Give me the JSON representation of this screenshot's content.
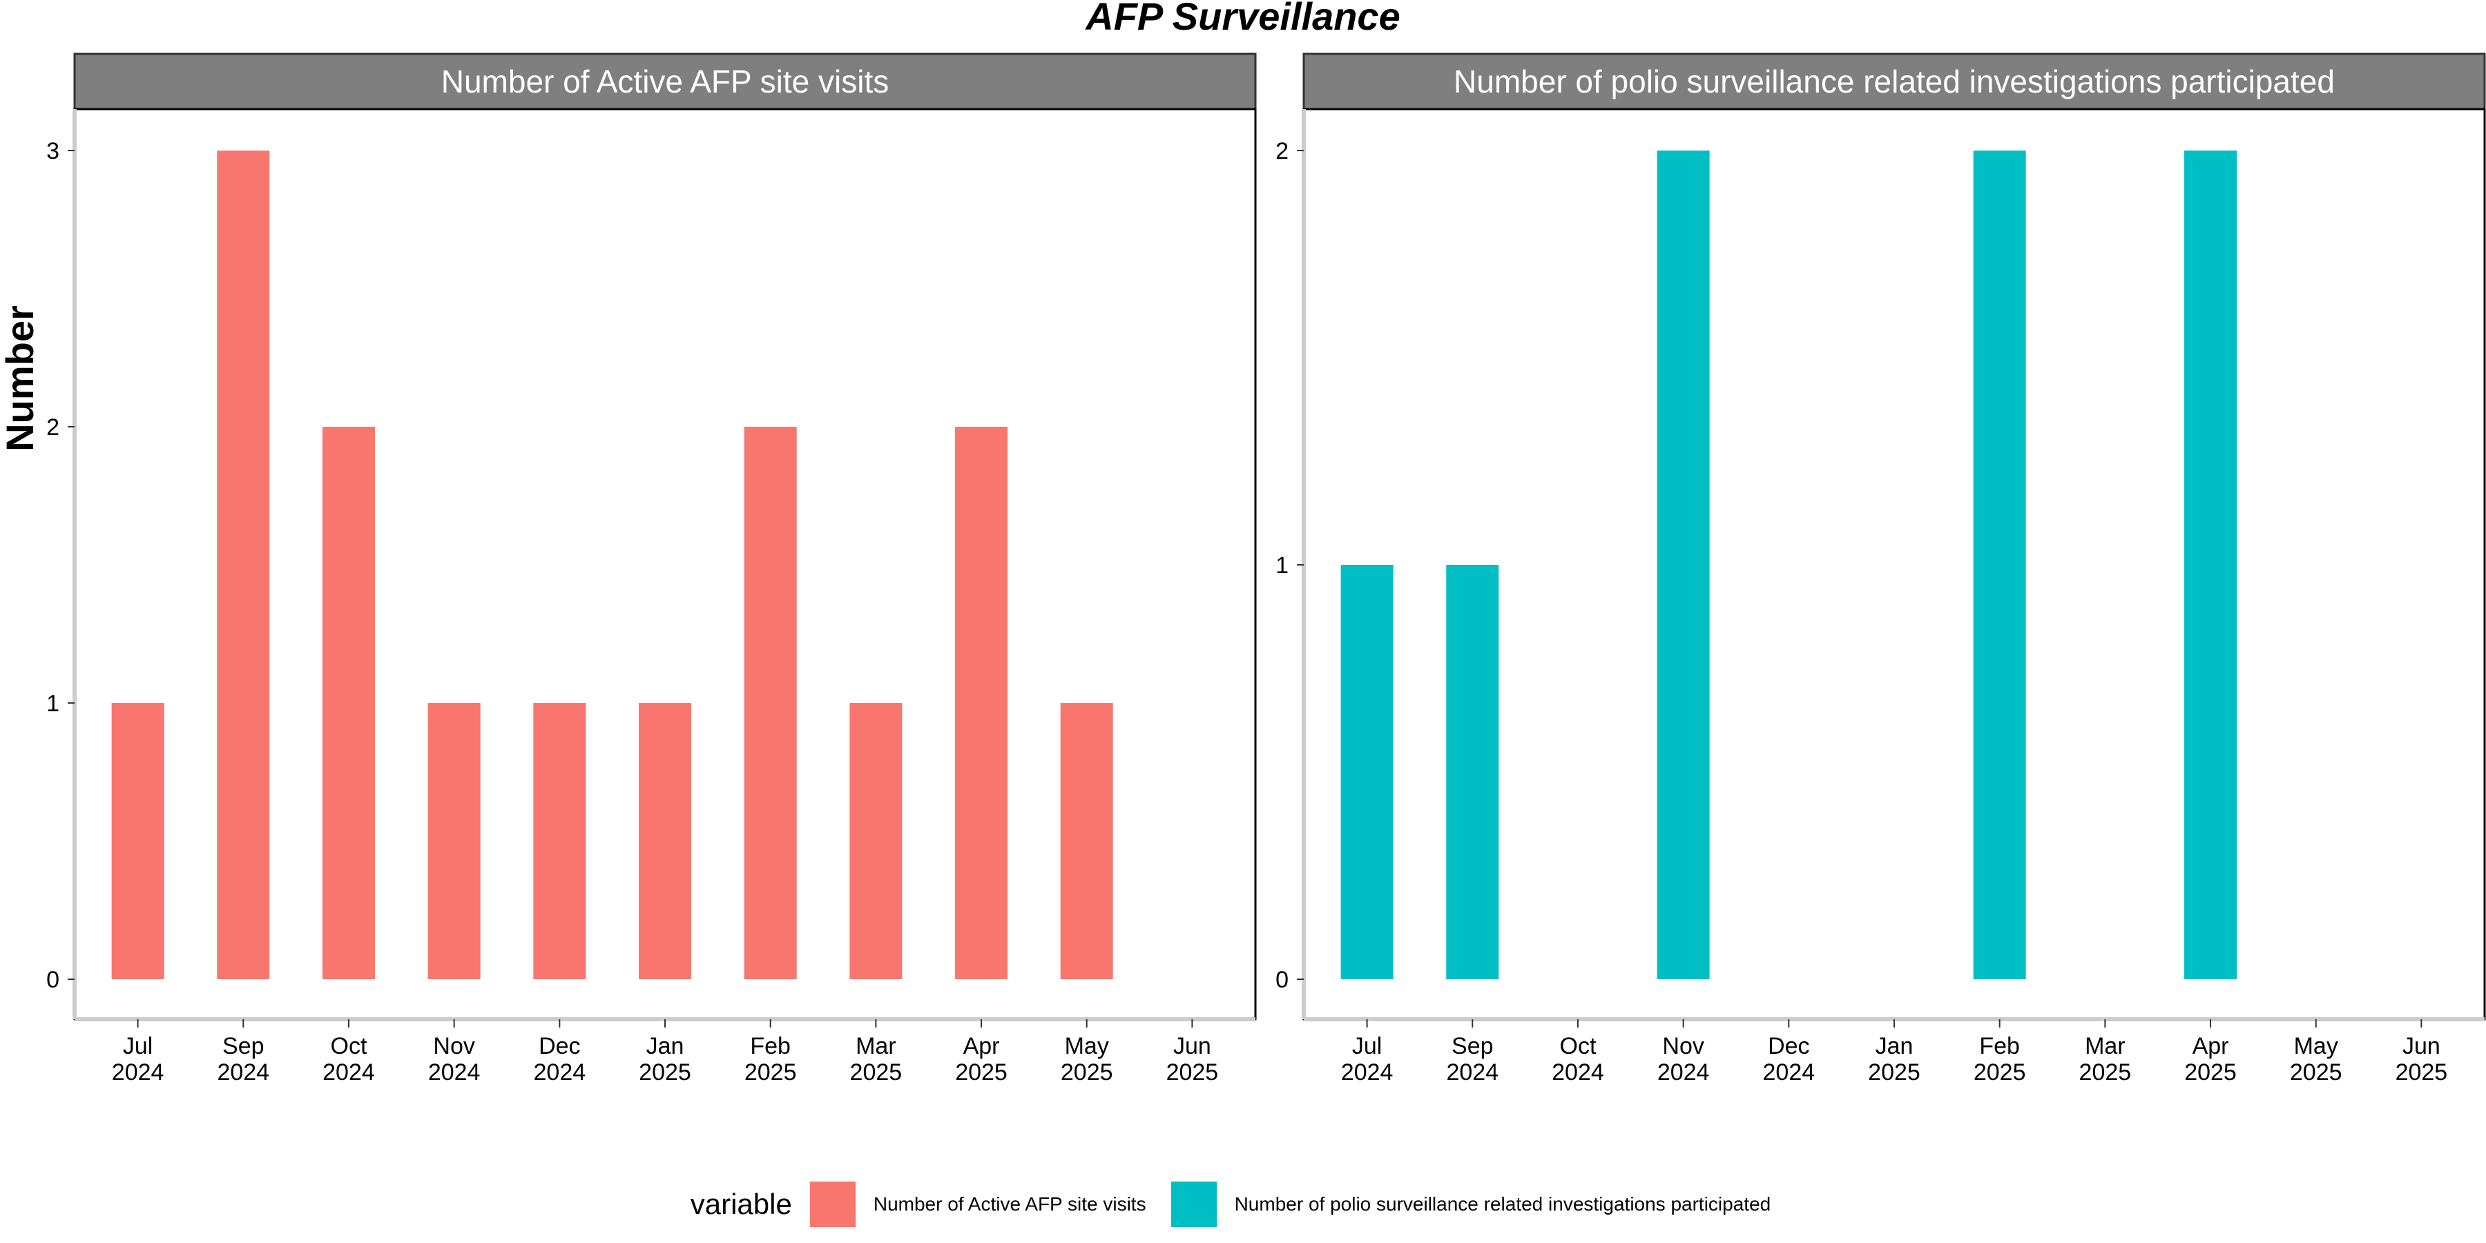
{
  "title": "AFP Surveillance",
  "ylabel": "Number",
  "legend": {
    "title": "variable",
    "position": "bottom",
    "items": [
      {
        "label": "Number of Active AFP site visits",
        "color": "#F8766D"
      },
      {
        "label": "Number of polio surveillance related investigations participated",
        "color": "#00BFC4"
      }
    ]
  },
  "chart_data": [
    {
      "type": "bar",
      "title": "Number of Active AFP site visits",
      "color": "#F8766D",
      "categories": [
        "Jul\n2024",
        "Sep\n2024",
        "Oct\n2024",
        "Nov\n2024",
        "Dec\n2024",
        "Jan\n2025",
        "Feb\n2025",
        "Mar\n2025",
        "Apr\n2025",
        "May\n2025",
        "Jun\n2025"
      ],
      "values": [
        1,
        3,
        2,
        1,
        1,
        1,
        2,
        1,
        2,
        1,
        null
      ],
      "yticks": [
        0,
        1,
        2,
        3
      ],
      "ylim": [
        0,
        3
      ],
      "grid": false
    },
    {
      "type": "bar",
      "title": "Number of polio surveillance related investigations participated",
      "color": "#00BFC4",
      "categories": [
        "Jul\n2024",
        "Sep\n2024",
        "Oct\n2024",
        "Nov\n2024",
        "Dec\n2024",
        "Jan\n2025",
        "Feb\n2025",
        "Mar\n2025",
        "Apr\n2025",
        "May\n2025",
        "Jun\n2025"
      ],
      "values": [
        1,
        1,
        null,
        2,
        null,
        null,
        2,
        null,
        2,
        null,
        null
      ],
      "yticks": [
        0,
        1,
        2
      ],
      "ylim": [
        0,
        2
      ],
      "grid": false
    }
  ]
}
